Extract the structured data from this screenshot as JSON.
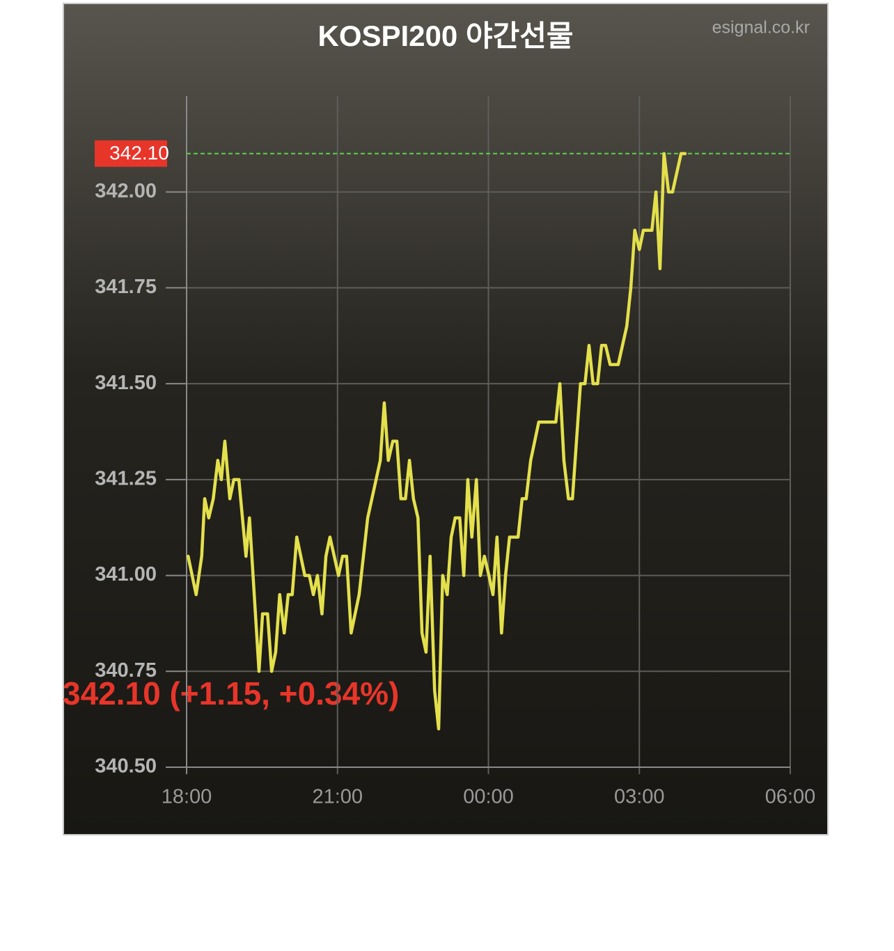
{
  "chart_data": {
    "type": "line",
    "title": "KOSPI200 야간선물",
    "source": "esignal.co.kr",
    "x": [
      0.03,
      0.19,
      0.3,
      0.36,
      0.44,
      0.53,
      0.62,
      0.69,
      0.76,
      0.86,
      0.94,
      1.04,
      1.18,
      1.25,
      1.44,
      1.51,
      1.61,
      1.69,
      1.77,
      1.85,
      1.94,
      2.02,
      2.1,
      2.19,
      2.35,
      2.44,
      2.52,
      2.6,
      2.69,
      2.77,
      2.85,
      3.02,
      3.1,
      3.18,
      3.27,
      3.43,
      3.6,
      3.85,
      3.93,
      4.01,
      4.1,
      4.18,
      4.26,
      4.35,
      4.43,
      4.51,
      4.6,
      4.68,
      4.76,
      4.84,
      4.93,
      5.01,
      5.09,
      5.18,
      5.26,
      5.34,
      5.43,
      5.51,
      5.59,
      5.67,
      5.76,
      5.84,
      5.92,
      6.01,
      6.09,
      6.17,
      6.26,
      6.34,
      6.42,
      6.59,
      6.67,
      6.75,
      6.84,
      7.0,
      7.34,
      7.42,
      7.5,
      7.59,
      7.67,
      7.83,
      7.92,
      8.0,
      8.08,
      8.17,
      8.25,
      8.33,
      8.42,
      8.58,
      8.75,
      8.83,
      8.91,
      9.0,
      9.08,
      9.25,
      9.33,
      9.41,
      9.49,
      9.58,
      9.66,
      9.83,
      9.91
    ],
    "series": [
      {
        "name": "KOSPI200 야간선물",
        "color": "#e3e04c",
        "values": [
          341.05,
          340.95,
          341.05,
          341.2,
          341.15,
          341.2,
          341.3,
          341.25,
          341.35,
          341.2,
          341.25,
          341.25,
          341.05,
          341.15,
          340.75,
          340.9,
          340.9,
          340.75,
          340.8,
          340.95,
          340.85,
          340.95,
          340.95,
          341.1,
          341.0,
          341.0,
          340.95,
          341.0,
          340.9,
          341.05,
          341.1,
          341.0,
          341.05,
          341.05,
          340.85,
          340.95,
          341.15,
          341.3,
          341.45,
          341.3,
          341.35,
          341.35,
          341.2,
          341.2,
          341.3,
          341.2,
          341.15,
          340.85,
          340.8,
          341.05,
          340.7,
          340.6,
          341.0,
          340.95,
          341.1,
          341.15,
          341.15,
          341.0,
          341.25,
          341.1,
          341.25,
          341.0,
          341.05,
          341.0,
          340.95,
          341.1,
          340.85,
          341.0,
          341.1,
          341.1,
          341.2,
          341.2,
          341.3,
          341.4,
          341.4,
          341.5,
          341.3,
          341.2,
          341.2,
          341.5,
          341.5,
          341.6,
          341.5,
          341.5,
          341.6,
          341.6,
          341.55,
          341.55,
          341.65,
          341.75,
          341.9,
          341.85,
          341.9,
          341.9,
          342.0,
          341.8,
          342.1,
          342.0,
          342.0,
          342.1,
          342.1
        ]
      }
    ],
    "current": {
      "value": 342.1,
      "label": "342.10"
    },
    "current_color": "#e8352a",
    "current_line_color": "#5fd34a",
    "xlim": [
      0,
      12
    ],
    "xticks": [
      {
        "value": 0,
        "label": "18:00"
      },
      {
        "value": 3,
        "label": "21:00"
      },
      {
        "value": 6,
        "label": "00:00"
      },
      {
        "value": 9,
        "label": "03:00"
      },
      {
        "value": 12,
        "label": "06:00"
      }
    ],
    "ylim": [
      340.5,
      342.25
    ],
    "yticks": [
      {
        "value": 340.5,
        "label": "340.50"
      },
      340.75,
      {
        "value": 341,
        "label": "341.00"
      },
      341.25,
      {
        "value": 341.5,
        "label": "341.50"
      },
      341.75,
      {
        "value": 342,
        "label": "342.00"
      }
    ],
    "grid": true
  },
  "summary": "342.10 (+1.15, +0.34%)"
}
